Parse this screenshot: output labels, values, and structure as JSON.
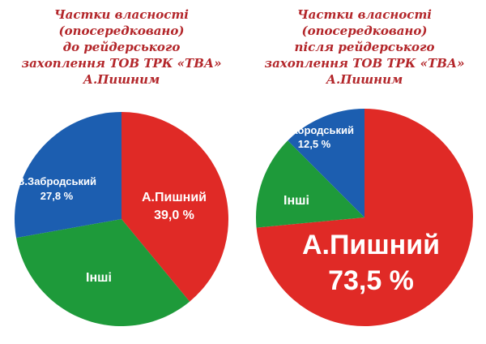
{
  "colors": {
    "red": "#e02a26",
    "green": "#1e9a3a",
    "blue": "#1c5eb0",
    "title": "#b3262a"
  },
  "chart_data": [
    {
      "type": "pie",
      "title_lines": [
        "Частки власності",
        "(опосередковано)",
        "до рейдерського",
        "захоплення ТОВ ТРК «ТВА»",
        "А.Пишним"
      ],
      "slices": [
        {
          "name": "А.Пишний",
          "value": 39.0,
          "value_label": "39,0 %",
          "color": "#e02a26"
        },
        {
          "name": "Інші",
          "value": 33.2,
          "value_label": "",
          "color": "#1e9a3a"
        },
        {
          "name": "В.Забродський",
          "value": 27.8,
          "value_label": "27,8 %",
          "color": "#1c5eb0"
        }
      ]
    },
    {
      "type": "pie",
      "title_lines": [
        "Частки власності",
        "(опосередковано)",
        "після рейдерського",
        "захоплення ТОВ ТРК «ТВА»",
        "А.Пишним"
      ],
      "slices": [
        {
          "name": "А.Пишний",
          "value": 73.5,
          "value_label": "73,5 %",
          "color": "#e02a26"
        },
        {
          "name": "Інші",
          "value": 14.0,
          "value_label": "",
          "color": "#1e9a3a"
        },
        {
          "name": "В.Забродський",
          "value": 12.5,
          "value_label": "12,5 %",
          "color": "#1c5eb0"
        }
      ]
    }
  ]
}
